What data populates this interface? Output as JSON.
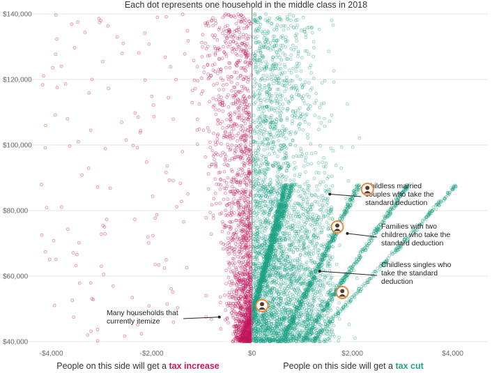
{
  "chart_data": {
    "type": "scatter",
    "title": "Each dot represents one household in the middle class in 2018",
    "xlim": [
      -4300,
      4700
    ],
    "ylim": [
      40000,
      140000
    ],
    "x_ticks": [
      -4000,
      -2000,
      0,
      2000,
      4000
    ],
    "x_tick_labels": [
      "-$4,000",
      "-$2,000",
      "$0",
      "$2,000",
      "$4,000"
    ],
    "y_ticks": [
      40000,
      60000,
      80000,
      100000,
      120000,
      140000
    ],
    "y_tick_labels": [
      "$40,000",
      "$60,000",
      "$80,000",
      "$100,000",
      "$120,000",
      "$140,000"
    ],
    "grid": true,
    "colors": {
      "increase": "#c2185b",
      "cut": "#1fa385",
      "zero_line": "#888888"
    },
    "footer": {
      "left_prefix": "People on this side will get a ",
      "left_emphasis": "tax increase",
      "right_prefix": "People on this side will get a ",
      "right_emphasis": "tax cut"
    },
    "annotations": [
      {
        "lines": [
          "Childless married",
          "couples who take the",
          "standard deduction"
        ],
        "x": 1550,
        "y": 85000,
        "icon": "married-couple-icon"
      },
      {
        "lines": [
          "Families with two",
          "children who take the",
          "standard deduction"
        ],
        "x": 1900,
        "y": 73000,
        "icon": "family-icon"
      },
      {
        "lines": [
          "Childless singles who",
          "take the standard",
          "deduction"
        ],
        "x": 1350,
        "y": 61500,
        "icon": "single-person-icon"
      },
      {
        "lines": [
          "Many households that",
          "currently itemize"
        ],
        "x": -650,
        "y": 47500,
        "icon": ""
      }
    ],
    "icons": [
      {
        "name": "married-couple-icon",
        "x": 2300,
        "y": 86500
      },
      {
        "name": "family-icon",
        "x": 1700,
        "y": 75000
      },
      {
        "name": "single-person-icon",
        "x": 1800,
        "y": 55000
      },
      {
        "name": "itemizer-icon",
        "x": 200,
        "y": 51000
      }
    ]
  }
}
